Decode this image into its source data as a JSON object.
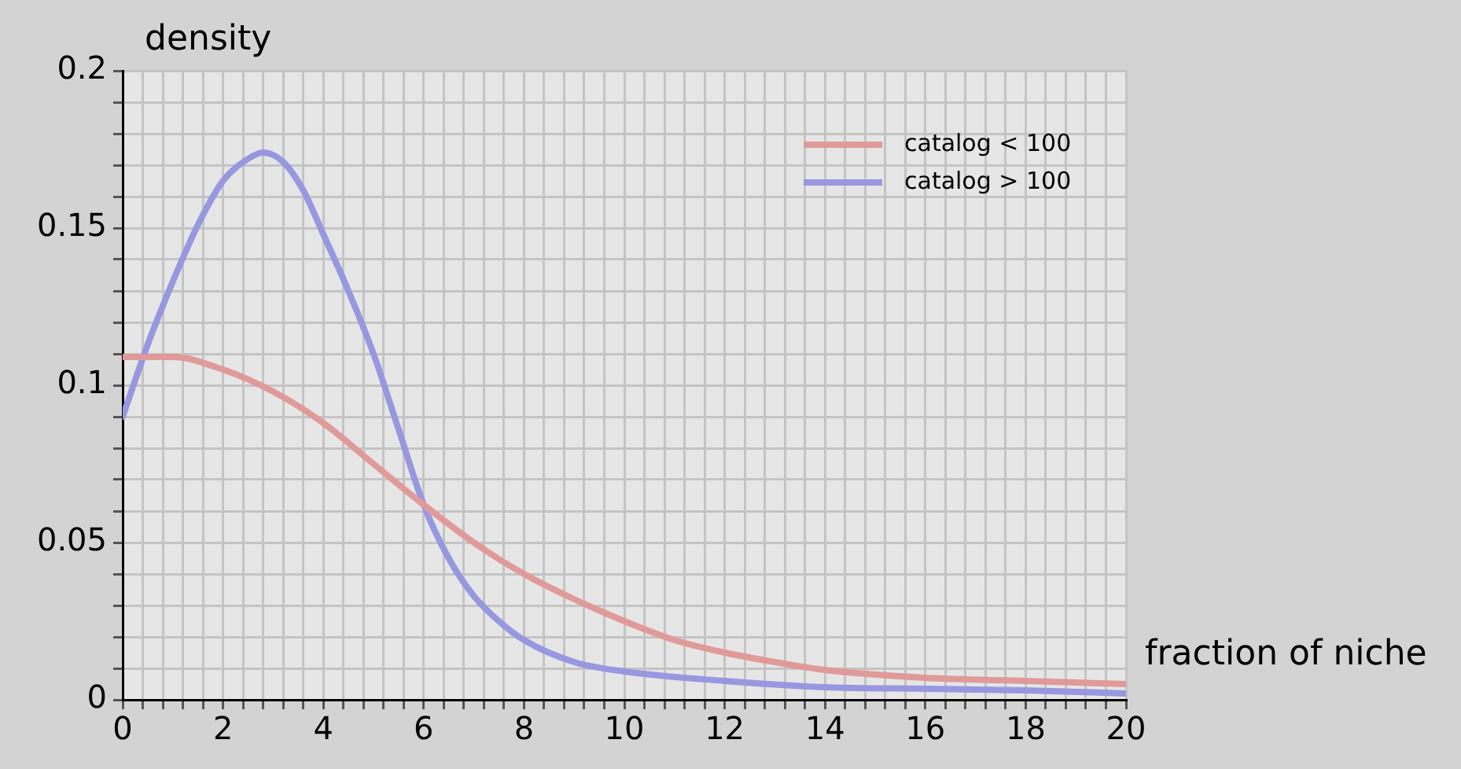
{
  "chart_data": {
    "type": "line",
    "xlabel": "fraction of niche",
    "ylabel": "density",
    "xlim": [
      0,
      20
    ],
    "ylim": [
      0,
      0.2
    ],
    "xticks": [
      0,
      {
        "value": 0.4,
        "label": null
      },
      {
        "value": 0.8,
        "label": null
      },
      {
        "value": 1.2,
        "label": null
      },
      {
        "value": 1.6,
        "label": null
      },
      2,
      {
        "value": 2.4,
        "label": null
      },
      {
        "value": 2.8,
        "label": null
      },
      {
        "value": 3.2,
        "label": null
      },
      {
        "value": 3.6,
        "label": null
      },
      4,
      {
        "value": 4.4,
        "label": null
      },
      {
        "value": 4.8,
        "label": null
      },
      {
        "value": 5.2,
        "label": null
      },
      {
        "value": 5.6,
        "label": null
      },
      6,
      {
        "value": 6.4,
        "label": null
      },
      {
        "value": 6.8,
        "label": null
      },
      {
        "value": 7.2,
        "label": null
      },
      {
        "value": 7.6,
        "label": null
      },
      8,
      {
        "value": 8.4,
        "label": null
      },
      {
        "value": 8.8,
        "label": null
      },
      {
        "value": 9.2,
        "label": null
      },
      {
        "value": 9.6,
        "label": null
      },
      10,
      {
        "value": 10.4,
        "label": null
      },
      {
        "value": 10.8,
        "label": null
      },
      {
        "value": 11.2,
        "label": null
      },
      {
        "value": 11.6,
        "label": null
      },
      12,
      {
        "value": 12.4,
        "label": null
      },
      {
        "value": 12.8,
        "label": null
      },
      {
        "value": 13.2,
        "label": null
      },
      {
        "value": 13.6,
        "label": null
      },
      14,
      {
        "value": 14.4,
        "label": null
      },
      {
        "value": 14.8,
        "label": null
      },
      {
        "value": 15.2,
        "label": null
      },
      {
        "value": 15.6,
        "label": null
      },
      16,
      {
        "value": 16.4,
        "label": null
      },
      {
        "value": 16.8,
        "label": null
      },
      {
        "value": 17.2,
        "label": null
      },
      {
        "value": 17.6,
        "label": null
      },
      18,
      {
        "value": 18.4,
        "label": null
      },
      {
        "value": 18.8,
        "label": null
      },
      {
        "value": 19.2,
        "label": null
      },
      {
        "value": 19.6,
        "label": null
      },
      20
    ],
    "yticks": [
      0,
      {
        "value": 0.01,
        "label": null
      },
      {
        "value": 0.02,
        "label": null
      },
      {
        "value": 0.03,
        "label": null
      },
      {
        "value": 0.04,
        "label": null
      },
      0.05,
      {
        "value": 0.06,
        "label": null
      },
      {
        "value": 0.07,
        "label": null
      },
      {
        "value": 0.08,
        "label": null
      },
      {
        "value": 0.09,
        "label": null
      },
      0.1,
      {
        "value": 0.11,
        "label": null
      },
      {
        "value": 0.12,
        "label": null
      },
      {
        "value": 0.13,
        "label": null
      },
      {
        "value": 0.14,
        "label": null
      },
      0.15,
      {
        "value": 0.16,
        "label": null
      },
      {
        "value": 0.17,
        "label": null
      },
      {
        "value": 0.18,
        "label": null
      },
      {
        "value": 0.19,
        "label": null
      },
      0.2
    ],
    "grid": true,
    "legend": "top right",
    "line_style": "solid",
    "marker": "none",
    "series": [
      {
        "name": "catalog < 100",
        "color": "#e09a9a",
        "x": [
          0,
          1,
          2,
          3,
          4,
          5,
          6,
          7,
          8,
          9,
          10,
          11,
          12,
          13,
          14,
          16,
          18,
          20
        ],
        "values": [
          0.109,
          0.109,
          0.105,
          0.098,
          0.088,
          0.075,
          0.062,
          0.05,
          0.04,
          0.032,
          0.025,
          0.019,
          0.015,
          0.012,
          0.0095,
          0.007,
          0.006,
          0.005
        ]
      },
      {
        "name": "catalog > 100",
        "color": "#9898e0",
        "x": [
          0,
          0.5,
          1,
          1.5,
          2,
          2.5,
          2.8,
          3.2,
          3.6,
          4,
          4.5,
          5,
          5.5,
          6,
          6.5,
          7,
          7.5,
          8,
          9,
          10,
          12,
          14,
          16,
          18,
          20
        ],
        "values": [
          0.09,
          0.113,
          0.133,
          0.151,
          0.165,
          0.172,
          0.174,
          0.171,
          0.162,
          0.148,
          0.13,
          0.11,
          0.086,
          0.062,
          0.045,
          0.033,
          0.025,
          0.019,
          0.012,
          0.009,
          0.006,
          0.004,
          0.0035,
          0.003,
          0.002
        ]
      }
    ]
  }
}
